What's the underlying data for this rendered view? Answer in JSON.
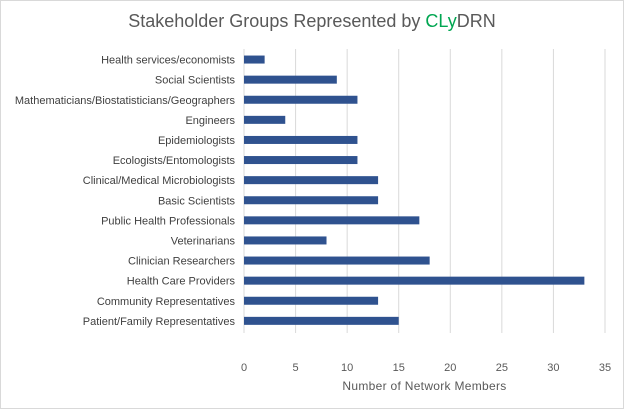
{
  "chart_data": {
    "type": "bar",
    "orientation": "horizontal",
    "title": {
      "before": "Stakeholder Groups Represented by ",
      "accent": "CLy",
      "after": "DRN",
      "accent_color": "#00a651"
    },
    "xlabel": "Number of Network Members",
    "ylabel": "",
    "xlim": [
      0,
      35
    ],
    "xticks": [
      0,
      5,
      10,
      15,
      20,
      25,
      30,
      35
    ],
    "grid": true,
    "legend": "none",
    "bar_color": "#2f528f",
    "categories": [
      "Health services/economists",
      "Social Scientists",
      "Mathematicians/Biostatisticians/Geographers",
      "Engineers",
      "Epidemiologists",
      "Ecologists/Entomologists",
      "Clinical/Medical Microbiologists",
      "Basic Scientists",
      "Public Health Professionals",
      "Veterinarians",
      "Clinician Researchers",
      "Health Care Providers",
      "Community Representatives",
      "Patient/Family Representatives"
    ],
    "values": [
      2,
      9,
      11,
      4,
      11,
      11,
      13,
      13,
      17,
      8,
      18,
      33,
      13,
      15
    ]
  }
}
